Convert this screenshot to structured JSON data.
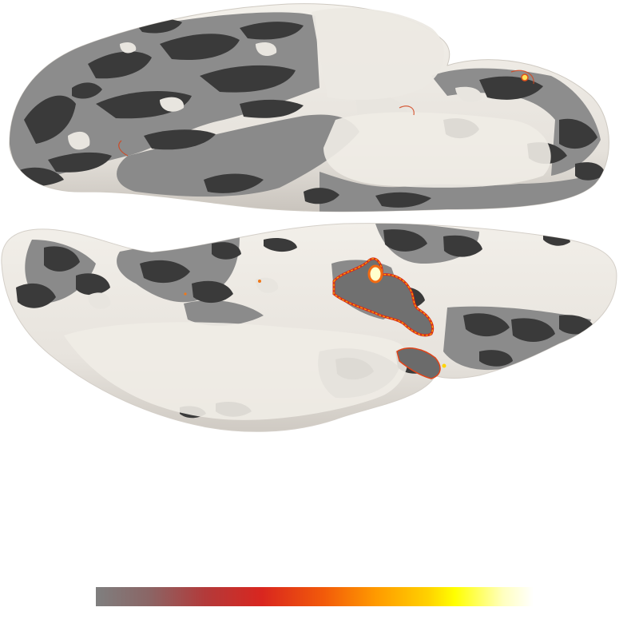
{
  "viewer": {
    "background_color": "#ffffff",
    "surface_base_light": "#e9e6e1",
    "surface_base_mid": "#8a8a8a",
    "surface_base_dark": "#3b3b3b",
    "overlay_colormap": [
      "#7f7f7f",
      "#8a6666",
      "#b33a3a",
      "#d9261f",
      "#f25a0a",
      "#ff9a00",
      "#ffd200",
      "#ffff00",
      "#ffffbf",
      "#ffffff"
    ]
  },
  "colorbar": {
    "orientation": "horizontal",
    "visible_labels": false
  }
}
